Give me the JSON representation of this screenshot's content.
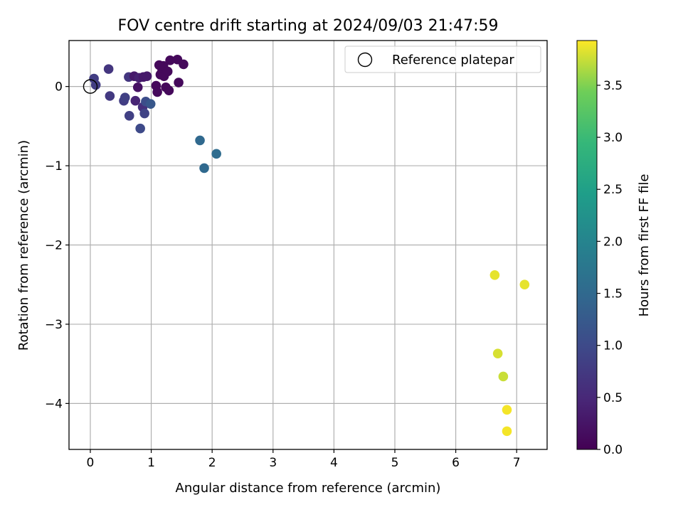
{
  "chart_data": {
    "type": "scatter",
    "title": "FOV centre drift starting at 2024/09/03 21:47:59",
    "xlabel": "Angular distance from reference (arcmin)",
    "ylabel": "Rotation from reference (arcmin)",
    "xlim": [
      -0.35,
      7.5
    ],
    "ylim": [
      -4.58,
      0.58
    ],
    "xticks": [
      0,
      1,
      2,
      3,
      4,
      5,
      6,
      7
    ],
    "yticks": [
      0,
      -1,
      -2,
      -3,
      -4
    ],
    "ytick_labels": [
      "0",
      "−1",
      "−2",
      "−3",
      "−4"
    ],
    "grid": true,
    "legend": {
      "position": "top-right",
      "entries": [
        {
          "label": "Reference platepar",
          "marker": "open-circle"
        }
      ]
    },
    "reference_point": {
      "x": 0,
      "y": 0
    },
    "colorbar": {
      "label": "Hours from first FF file",
      "colormap": "viridis",
      "range": [
        0,
        3.93
      ],
      "ticks": [
        0,
        0.5,
        1.0,
        1.5,
        2.0,
        2.5,
        3.0,
        3.5
      ],
      "tick_labels": [
        "0.0",
        "0.5",
        "1.0",
        "1.5",
        "2.0",
        "2.5",
        "3.0",
        "3.5"
      ]
    },
    "points": [
      {
        "x": 0.06,
        "y": 0.1,
        "c": 0.8
      },
      {
        "x": 0.09,
        "y": 0.02,
        "c": 0.8
      },
      {
        "x": 0.3,
        "y": 0.22,
        "c": 0.7
      },
      {
        "x": 0.32,
        "y": -0.12,
        "c": 0.75
      },
      {
        "x": 0.55,
        "y": -0.18,
        "c": 0.8
      },
      {
        "x": 0.57,
        "y": -0.14,
        "c": 0.85
      },
      {
        "x": 0.63,
        "y": 0.12,
        "c": 0.7
      },
      {
        "x": 0.64,
        "y": -0.37,
        "c": 0.85
      },
      {
        "x": 0.72,
        "y": 0.13,
        "c": 0.3
      },
      {
        "x": 0.74,
        "y": -0.18,
        "c": 0.45
      },
      {
        "x": 0.78,
        "y": -0.01,
        "c": 0.2
      },
      {
        "x": 0.8,
        "y": 0.11,
        "c": 0.4
      },
      {
        "x": 0.82,
        "y": -0.53,
        "c": 1.0
      },
      {
        "x": 0.86,
        "y": -0.26,
        "c": 0.6
      },
      {
        "x": 0.87,
        "y": 0.12,
        "c": 0.3
      },
      {
        "x": 0.89,
        "y": -0.34,
        "c": 0.9
      },
      {
        "x": 0.91,
        "y": -0.19,
        "c": 1.05
      },
      {
        "x": 0.93,
        "y": 0.13,
        "c": 0.3
      },
      {
        "x": 0.99,
        "y": -0.22,
        "c": 1.2
      },
      {
        "x": 1.08,
        "y": 0.01,
        "c": 0.1
      },
      {
        "x": 1.1,
        "y": -0.07,
        "c": 0.1
      },
      {
        "x": 1.13,
        "y": 0.27,
        "c": 0.1
      },
      {
        "x": 1.15,
        "y": 0.15,
        "c": 0.1
      },
      {
        "x": 1.18,
        "y": 0.2,
        "c": 0.1
      },
      {
        "x": 1.2,
        "y": 0.26,
        "c": 0.1
      },
      {
        "x": 1.21,
        "y": 0.13,
        "c": 0.1
      },
      {
        "x": 1.24,
        "y": -0.01,
        "c": 0.1
      },
      {
        "x": 1.27,
        "y": 0.19,
        "c": 0.1
      },
      {
        "x": 1.29,
        "y": -0.05,
        "c": 0.1
      },
      {
        "x": 1.31,
        "y": 0.33,
        "c": 0.1
      },
      {
        "x": 1.43,
        "y": 0.34,
        "c": 0.1
      },
      {
        "x": 1.45,
        "y": 0.05,
        "c": 0.1
      },
      {
        "x": 1.53,
        "y": 0.28,
        "c": 0.1
      },
      {
        "x": 1.8,
        "y": -0.68,
        "c": 1.5
      },
      {
        "x": 1.87,
        "y": -1.03,
        "c": 1.5
      },
      {
        "x": 2.07,
        "y": -0.85,
        "c": 1.55
      },
      {
        "x": 6.64,
        "y": -2.38,
        "c": 3.85
      },
      {
        "x": 7.13,
        "y": -2.5,
        "c": 3.85
      },
      {
        "x": 6.69,
        "y": -3.37,
        "c": 3.8
      },
      {
        "x": 6.78,
        "y": -3.66,
        "c": 3.75
      },
      {
        "x": 6.84,
        "y": -4.08,
        "c": 3.9
      },
      {
        "x": 6.84,
        "y": -4.35,
        "c": 3.9
      }
    ]
  }
}
